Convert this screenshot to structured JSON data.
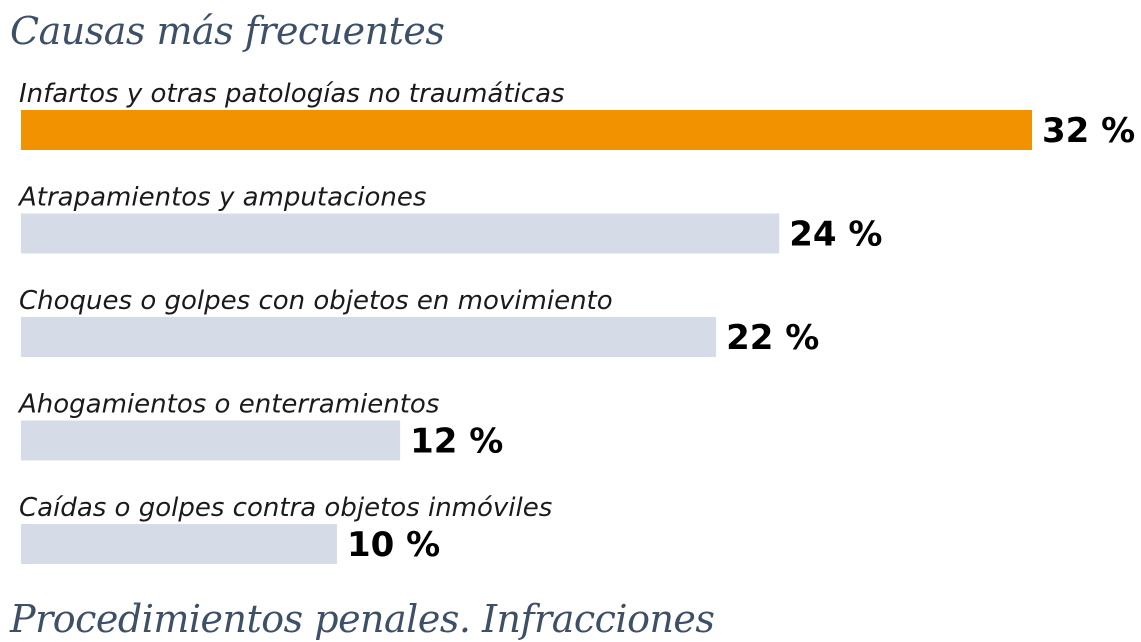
{
  "section_titles": {
    "top": "Causas más frecuentes",
    "bottom": "Procedimientos penales. Infracciones"
  },
  "colors": {
    "highlight": "#f39200",
    "bar": "#d6dce7"
  },
  "chart_data": {
    "type": "bar",
    "orientation": "horizontal",
    "title": "Causas más frecuentes",
    "categories": [
      "Infartos y otras patologías no traumáticas",
      "Atrapamientos y amputaciones",
      "Choques o golpes con objetos en movimiento",
      "Ahogamientos o enterramientos",
      "Caídas o golpes contra objetos inmóviles"
    ],
    "values": [
      32,
      24,
      22,
      12,
      10
    ],
    "value_labels": [
      "32 %",
      "24 %",
      "22 %",
      "12 %",
      "10 %"
    ],
    "highlighted": [
      true,
      false,
      false,
      false,
      false
    ],
    "xlim": [
      0,
      32
    ],
    "grid": false,
    "legend": "none"
  }
}
